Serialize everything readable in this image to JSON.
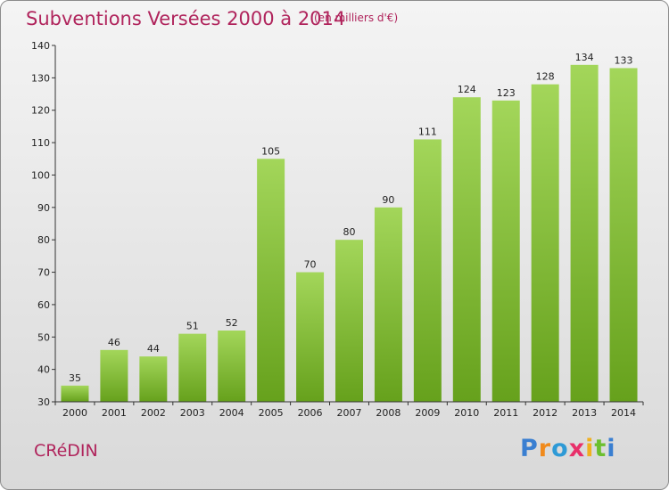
{
  "chart_data": {
    "type": "bar",
    "title": "Subventions Versées 2000 à 2014",
    "subtitle": "(en milliers d'€)",
    "categories": [
      "2000",
      "2001",
      "2002",
      "2003",
      "2004",
      "2005",
      "2006",
      "2007",
      "2008",
      "2009",
      "2010",
      "2011",
      "2012",
      "2013",
      "2014"
    ],
    "values": [
      35,
      46,
      44,
      51,
      52,
      105,
      70,
      80,
      90,
      111,
      124,
      123,
      128,
      134,
      133
    ],
    "ylim": [
      30,
      140
    ],
    "yticks": [
      30,
      40,
      50,
      60,
      70,
      80,
      90,
      100,
      110,
      120,
      130,
      140
    ],
    "grid": false,
    "colors": {
      "bar_top": "#a3d65a",
      "bar_bottom": "#66a11c",
      "title": "#b0245c"
    }
  },
  "footer": {
    "commune": "CRéDIN",
    "logo": {
      "letters": [
        "P",
        "r",
        "o",
        "x",
        "i",
        "t",
        "i"
      ],
      "colors": [
        "#3a7fd1",
        "#f08a1c",
        "#2e9ad6",
        "#e8306a",
        "#f0b020",
        "#6cbf2e",
        "#3a7fd1"
      ]
    }
  }
}
